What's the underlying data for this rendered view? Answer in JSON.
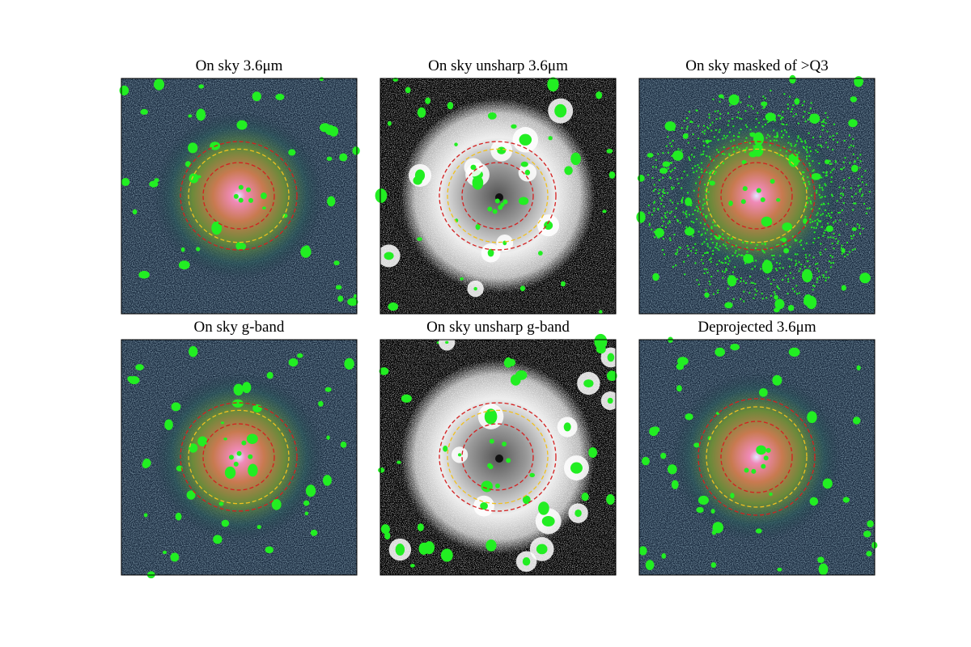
{
  "panels": [
    {
      "title": "On sky 3.6μm"
    },
    {
      "title": "On sky unsharp 3.6μm"
    },
    {
      "title": "On sky masked of >Q3"
    },
    {
      "title": "On sky g-band"
    },
    {
      "title": "On sky unsharp g-band"
    },
    {
      "title": "Deprojected 3.6μm"
    }
  ]
}
